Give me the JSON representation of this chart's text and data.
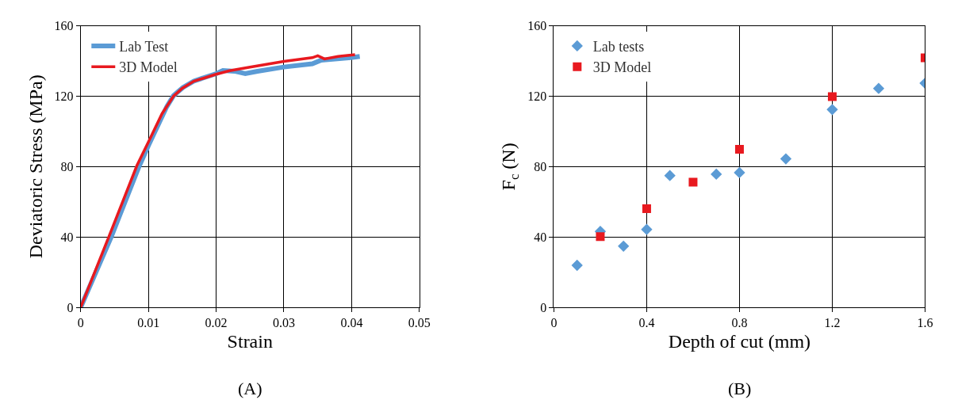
{
  "chart_data": [
    {
      "type": "line",
      "xlabel": "Strain",
      "ylabel": "Deviatoric Stress (MPa)",
      "annotations": [
        "(A)"
      ],
      "xlim": [
        0,
        0.05
      ],
      "xticks": [
        0,
        0.01,
        0.02,
        0.03,
        0.04,
        0.05
      ],
      "ylim": [
        0,
        160
      ],
      "yticks": [
        0,
        40,
        80,
        120,
        160
      ],
      "grid": true,
      "legend": "top left",
      "marker": "none",
      "line_style": "solid",
      "series": [
        {
          "name": "Lab Test",
          "color": "#5b9bd5",
          "x": [
            0,
            0.0045,
            0.0085,
            0.01,
            0.0127,
            0.0137,
            0.0151,
            0.0167,
            0.02,
            0.021,
            0.0227,
            0.0243,
            0.0261,
            0.03,
            0.0342,
            0.0355,
            0.0399,
            0.0412
          ],
          "values": [
            0,
            40,
            79,
            92,
            114,
            120.3,
            125,
            128.6,
            132.8,
            134.6,
            134.2,
            132.8,
            134.2,
            136.6,
            138.4,
            140.5,
            141.9,
            142.6
          ]
        },
        {
          "name": "3D Model",
          "color": "#e8191f",
          "x": [
            0,
            0.0043,
            0.0083,
            0.01,
            0.012,
            0.0137,
            0.015,
            0.0167,
            0.02,
            0.022,
            0.025,
            0.03,
            0.0342,
            0.035,
            0.036,
            0.038,
            0.0405
          ],
          "values": [
            0,
            41.5,
            80.6,
            94,
            110,
            120,
            124.5,
            128.5,
            132.5,
            134.5,
            136.5,
            139.8,
            141.9,
            143,
            141.2,
            142.6,
            143.6
          ]
        }
      ]
    },
    {
      "type": "scatter",
      "xlabel": "Depth of cut (mm)",
      "ylabel": "F$_{c}$ (N)",
      "annotations": [
        "(B)"
      ],
      "xlim": [
        0,
        1.6
      ],
      "xticks": [
        0,
        0.4,
        0.8,
        1.2,
        1.6
      ],
      "ylim": [
        0,
        160
      ],
      "yticks": [
        0,
        40,
        80,
        120,
        160
      ],
      "grid": true,
      "legend": "top left",
      "series": [
        {
          "name": "Lab tests",
          "color": "#5b9bd5",
          "marker": "diamond",
          "x": [
            0.1,
            0.2,
            0.3,
            0.4,
            0.5,
            0.7,
            0.8,
            1.0,
            1.2,
            1.4,
            1.6
          ],
          "values": [
            23.9,
            43.2,
            34.8,
            44.3,
            74.9,
            75.7,
            76.6,
            84.4,
            112.4,
            124.4,
            127.4
          ]
        },
        {
          "name": "3D Model",
          "color": "#e8191f",
          "marker": "square",
          "x": [
            0.2,
            0.4,
            0.6,
            0.8,
            1.2,
            1.6
          ],
          "values": [
            40.2,
            56.1,
            71.2,
            89.8,
            119.8,
            141.8
          ]
        }
      ]
    }
  ]
}
